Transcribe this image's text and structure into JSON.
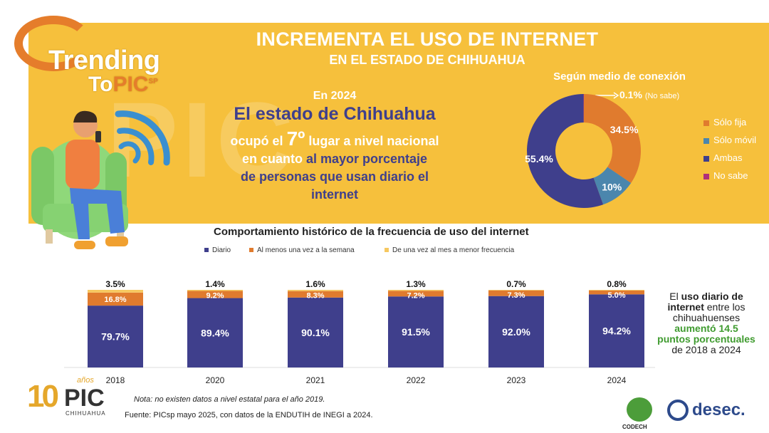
{
  "header": {
    "title": "INCREMENTA EL USO DE INTERNET",
    "subtitle": "EN EL ESTADO DE CHIHUAHUA"
  },
  "logo": {
    "line1": "Trending",
    "line2_a": "To",
    "line2_b": "PIC",
    "line2_sp": "SP",
    "watermark": "PIC"
  },
  "highlight": {
    "year_intro": "En 2024",
    "state": "El estado de Chihuahua",
    "rank_pre": "ocupó el",
    "rank": "7º",
    "rank_post": "lugar a nivel nacional",
    "line2_a": "en cuanto",
    "line2_b": "al mayor porcentaje",
    "line3": "de personas que usan diario el",
    "line4": "internet"
  },
  "donut": {
    "title": "Según medio de conexión",
    "nosabe_value": "0.1%",
    "nosabe_label": "(No sabe)"
  },
  "history": {
    "title": "Comportamiento histórico de la frecuencia de uso del internet"
  },
  "summary": {
    "l1a": "El",
    "l1b": "uso diario de",
    "l2a": "internet",
    "l2b": "entre los",
    "l3": "chihuahuenses",
    "l4": "aumentó 14.5",
    "l5": "puntos porcentuales",
    "l6": "de 2018 a 2024"
  },
  "footer": {
    "note": "Nota: no existen datos a nivel estatal para el año 2019.",
    "source": "Fuente:  PICsp mayo 2025, con datos de la ENDUTIH de INEGI a 2024.",
    "logo10_num": "10",
    "logo10_anos": "años",
    "logo10_pic": "PIC",
    "logo10_sub": "CHIHUAHUA",
    "codech": "CODECH",
    "desec": "desec."
  },
  "colors": {
    "yellow": "#f6c03c",
    "orange": "#e07b2e",
    "teal": "#4b86ad",
    "navy": "#3f3f8c",
    "magenta": "#b0307a",
    "light_yellow": "#f6c860"
  },
  "chart_data": [
    {
      "type": "pie",
      "donut": true,
      "title": "Según medio de conexión",
      "categories": [
        "Sólo fija",
        "Sólo móvil",
        "Ambas",
        "No sabe"
      ],
      "values": [
        34.5,
        10,
        55.4,
        0.1
      ],
      "labels": [
        "34.5%",
        "10%",
        "55.4%",
        "0.1%"
      ],
      "legend_position": "right"
    },
    {
      "type": "bar",
      "stacked": true,
      "title": "Comportamiento histórico de la frecuencia de uso del internet",
      "categories": [
        "2018",
        "2020",
        "2021",
        "2022",
        "2023",
        "2024"
      ],
      "series": [
        {
          "name": "Diario",
          "values": [
            79.7,
            89.4,
            90.1,
            91.5,
            92.0,
            94.2
          ],
          "labels": [
            "79.7%",
            "89.4%",
            "90.1%",
            "91.5%",
            "92.0%",
            "94.2%"
          ]
        },
        {
          "name": "Al menos una vez a la semana",
          "values": [
            16.8,
            9.2,
            8.3,
            7.2,
            7.3,
            5.0
          ],
          "labels": [
            "16.8%",
            "9.2%",
            "8.3%",
            "7.2%",
            "7.3%",
            "5.0%"
          ]
        },
        {
          "name": "De una vez al mes a menor frecuencia",
          "values": [
            3.5,
            1.4,
            1.6,
            1.3,
            0.7,
            0.8
          ],
          "labels": [
            "3.5%",
            "1.4%",
            "1.6%",
            "1.3%",
            "0.7%",
            "0.8%"
          ]
        }
      ],
      "legend_position": "top",
      "grid": false
    }
  ]
}
